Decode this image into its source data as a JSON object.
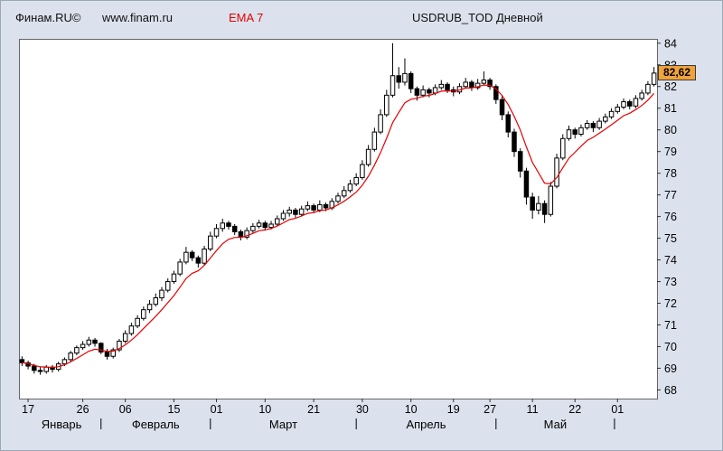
{
  "header": {
    "brand": "Финам.RU©",
    "site": "www.finam.ru",
    "indicator": "EMA 7",
    "instrument": "USDRUB_TOD Дневной"
  },
  "price_label": {
    "text": "82,62",
    "value": 82.62
  },
  "colors": {
    "background": "#dbe2ed",
    "plot_bg": "#ffffff",
    "plot_border": "#666666",
    "candle_up": "#ffffff",
    "candle_down": "#000000",
    "candle_outline": "#000000",
    "badge_bg": "#f0a23c",
    "badge_border": "#3a3a3a",
    "indicator_red": "#e60000"
  },
  "chart_data": {
    "type": "candlestick",
    "title": "USDRUB_TOD Дневной",
    "timeframe": "Дневной",
    "instrument": "USDRUB_TOD",
    "overlay": {
      "name": "EMA 7",
      "period": 7,
      "color": "#e60000"
    },
    "ylim": [
      67.6,
      84.2
    ],
    "y_ticks": [
      84,
      83,
      82,
      81,
      80,
      79,
      78,
      77,
      76,
      75,
      74,
      73,
      72,
      71,
      70,
      69,
      68
    ],
    "last_price": 82.62,
    "x_ticks": [
      {
        "label": "17",
        "index": 1
      },
      {
        "label": "26",
        "index": 10
      },
      {
        "label": "06",
        "index": 17
      },
      {
        "label": "15",
        "index": 25
      },
      {
        "label": "01",
        "index": 32
      },
      {
        "label": "10",
        "index": 40
      },
      {
        "label": "21",
        "index": 48
      },
      {
        "label": "30",
        "index": 56
      },
      {
        "label": "10",
        "index": 64
      },
      {
        "label": "19",
        "index": 71
      },
      {
        "label": "27",
        "index": 77
      },
      {
        "label": "11",
        "index": 84
      },
      {
        "label": "22",
        "index": 91
      },
      {
        "label": "01",
        "index": 98
      }
    ],
    "months": [
      {
        "label": "Январь",
        "center_index": 6.5,
        "end_index": 13
      },
      {
        "label": "Февраль",
        "center_index": 22,
        "end_index": 31
      },
      {
        "label": "Март",
        "center_index": 43,
        "end_index": 55
      },
      {
        "label": "Апрель",
        "center_index": 66.5,
        "end_index": 78
      },
      {
        "label": "Май",
        "center_index": 87.75,
        "end_index": 97.5
      }
    ],
    "candles_format": [
      "open",
      "high",
      "low",
      "close"
    ],
    "candles": [
      [
        69.4,
        69.55,
        69.1,
        69.25
      ],
      [
        69.25,
        69.35,
        68.95,
        69.1
      ],
      [
        69.1,
        69.2,
        68.75,
        68.9
      ],
      [
        68.9,
        69.05,
        68.7,
        68.85
      ],
      [
        68.85,
        69.15,
        68.75,
        69.05
      ],
      [
        69.05,
        69.15,
        68.8,
        68.95
      ],
      [
        68.95,
        69.3,
        68.85,
        69.2
      ],
      [
        69.2,
        69.5,
        69.1,
        69.4
      ],
      [
        69.4,
        69.8,
        69.3,
        69.7
      ],
      [
        69.7,
        70.05,
        69.6,
        69.95
      ],
      [
        69.95,
        70.25,
        69.85,
        70.1
      ],
      [
        70.1,
        70.45,
        70.0,
        70.3
      ],
      [
        70.3,
        70.4,
        70.0,
        70.15
      ],
      [
        70.15,
        70.2,
        69.65,
        69.75
      ],
      [
        69.75,
        69.9,
        69.4,
        69.55
      ],
      [
        69.55,
        69.95,
        69.45,
        69.85
      ],
      [
        69.85,
        70.35,
        69.75,
        70.25
      ],
      [
        70.25,
        70.75,
        70.15,
        70.6
      ],
      [
        70.6,
        71.1,
        70.5,
        70.95
      ],
      [
        70.95,
        71.45,
        70.85,
        71.3
      ],
      [
        71.3,
        71.85,
        71.2,
        71.7
      ],
      [
        71.7,
        72.15,
        71.55,
        71.95
      ],
      [
        71.95,
        72.45,
        71.85,
        72.25
      ],
      [
        72.25,
        72.75,
        72.1,
        72.6
      ],
      [
        72.6,
        73.15,
        72.5,
        73.0
      ],
      [
        73.0,
        73.5,
        72.9,
        73.35
      ],
      [
        73.35,
        74.05,
        73.25,
        73.9
      ],
      [
        73.9,
        74.6,
        73.8,
        74.35
      ],
      [
        74.35,
        74.45,
        73.95,
        74.1
      ],
      [
        74.1,
        74.2,
        73.65,
        73.85
      ],
      [
        73.85,
        74.65,
        73.75,
        74.5
      ],
      [
        74.5,
        75.3,
        74.4,
        75.1
      ],
      [
        75.1,
        75.65,
        75.0,
        75.45
      ],
      [
        75.45,
        75.9,
        75.3,
        75.7
      ],
      [
        75.7,
        75.8,
        75.4,
        75.55
      ],
      [
        75.55,
        75.65,
        75.15,
        75.3
      ],
      [
        75.3,
        75.4,
        74.9,
        75.05
      ],
      [
        75.05,
        75.5,
        74.95,
        75.35
      ],
      [
        75.35,
        75.7,
        75.25,
        75.55
      ],
      [
        75.55,
        75.85,
        75.45,
        75.7
      ],
      [
        75.7,
        75.8,
        75.35,
        75.5
      ],
      [
        75.5,
        75.8,
        75.4,
        75.65
      ],
      [
        75.65,
        76.05,
        75.55,
        75.9
      ],
      [
        75.9,
        76.3,
        75.8,
        76.15
      ],
      [
        76.15,
        76.45,
        76.0,
        76.3
      ],
      [
        76.3,
        76.4,
        75.95,
        76.1
      ],
      [
        76.1,
        76.5,
        76.0,
        76.35
      ],
      [
        76.35,
        76.7,
        76.25,
        76.5
      ],
      [
        76.5,
        76.6,
        76.15,
        76.3
      ],
      [
        76.3,
        76.75,
        76.2,
        76.55
      ],
      [
        76.55,
        76.65,
        76.25,
        76.4
      ],
      [
        76.4,
        76.85,
        76.3,
        76.7
      ],
      [
        76.7,
        77.1,
        76.6,
        76.95
      ],
      [
        76.95,
        77.4,
        76.85,
        77.2
      ],
      [
        77.2,
        77.7,
        77.1,
        77.5
      ],
      [
        77.5,
        78.0,
        77.4,
        77.8
      ],
      [
        77.8,
        78.6,
        77.7,
        78.4
      ],
      [
        78.4,
        79.3,
        78.3,
        79.1
      ],
      [
        79.1,
        80.1,
        79.0,
        79.9
      ],
      [
        79.9,
        80.95,
        79.8,
        80.7
      ],
      [
        80.7,
        81.85,
        80.6,
        81.6
      ],
      [
        81.6,
        84.0,
        81.5,
        82.5
      ],
      [
        82.5,
        82.9,
        81.9,
        82.2
      ],
      [
        82.2,
        83.3,
        82.05,
        82.6
      ],
      [
        82.6,
        82.7,
        81.7,
        81.9
      ],
      [
        81.9,
        82.0,
        81.35,
        81.6
      ],
      [
        81.6,
        82.05,
        81.5,
        81.85
      ],
      [
        81.85,
        81.95,
        81.5,
        81.7
      ],
      [
        81.7,
        82.1,
        81.6,
        81.95
      ],
      [
        81.95,
        82.3,
        81.85,
        82.1
      ],
      [
        82.1,
        82.2,
        81.7,
        81.85
      ],
      [
        81.85,
        82.0,
        81.55,
        81.75
      ],
      [
        81.75,
        82.15,
        81.65,
        82.0
      ],
      [
        82.0,
        82.4,
        81.9,
        82.2
      ],
      [
        82.2,
        82.3,
        81.8,
        81.95
      ],
      [
        81.95,
        82.35,
        81.85,
        82.15
      ],
      [
        82.15,
        82.7,
        82.05,
        82.3
      ],
      [
        82.3,
        82.4,
        81.85,
        82.0
      ],
      [
        82.0,
        82.1,
        81.2,
        81.4
      ],
      [
        81.4,
        81.55,
        80.45,
        80.7
      ],
      [
        80.7,
        80.85,
        79.65,
        79.9
      ],
      [
        79.9,
        80.05,
        78.75,
        79.0
      ],
      [
        79.0,
        79.15,
        77.8,
        78.1
      ],
      [
        78.1,
        78.25,
        76.55,
        76.9
      ],
      [
        76.9,
        77.1,
        75.9,
        76.3
      ],
      [
        76.3,
        76.95,
        76.1,
        76.6
      ],
      [
        76.6,
        76.75,
        75.7,
        76.1
      ],
      [
        76.1,
        77.6,
        76.0,
        77.4
      ],
      [
        77.4,
        78.9,
        77.3,
        78.7
      ],
      [
        78.7,
        79.8,
        78.6,
        79.6
      ],
      [
        79.6,
        80.2,
        79.5,
        80.0
      ],
      [
        80.0,
        80.1,
        79.6,
        79.8
      ],
      [
        79.8,
        80.25,
        79.7,
        80.1
      ],
      [
        80.1,
        80.45,
        80.0,
        80.3
      ],
      [
        80.3,
        80.4,
        79.9,
        80.1
      ],
      [
        80.1,
        80.55,
        80.0,
        80.4
      ],
      [
        80.4,
        80.75,
        80.3,
        80.6
      ],
      [
        80.6,
        81.0,
        80.5,
        80.85
      ],
      [
        80.85,
        81.2,
        80.75,
        81.05
      ],
      [
        81.05,
        81.45,
        80.95,
        81.3
      ],
      [
        81.3,
        81.4,
        80.95,
        81.1
      ],
      [
        81.1,
        81.6,
        81.0,
        81.45
      ],
      [
        81.45,
        81.85,
        81.35,
        81.7
      ],
      [
        81.7,
        82.25,
        81.6,
        82.1
      ],
      [
        82.1,
        82.9,
        82.0,
        82.62
      ]
    ]
  }
}
